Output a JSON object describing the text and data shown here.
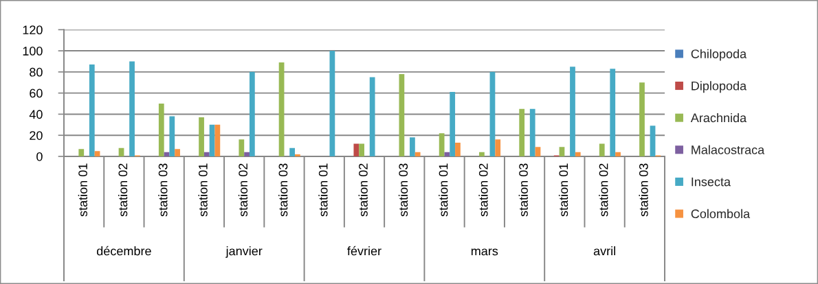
{
  "chart_data": {
    "type": "bar",
    "categories": [
      "station 01",
      "station 02",
      "station 03",
      "station 01",
      "station 02",
      "station 03",
      "station 01",
      "station 02",
      "station 03",
      "station 01",
      "station 02",
      "station 03",
      "station 01",
      "station 02",
      "station 03"
    ],
    "annotations": [
      "décembre",
      "janvier",
      "février",
      "mars",
      "avril"
    ],
    "series": [
      {
        "name": "Chilopoda",
        "color": "#4a7ebb",
        "values": [
          0,
          0,
          0,
          0,
          0,
          0,
          0,
          0,
          0,
          0,
          0,
          0,
          0,
          0,
          0
        ]
      },
      {
        "name": "Diplopoda",
        "color": "#be4b48",
        "values": [
          0,
          0,
          0,
          0,
          0,
          0,
          0,
          12,
          0,
          0,
          0,
          0,
          1,
          0,
          0
        ]
      },
      {
        "name": "Arachnida",
        "color": "#98b954",
        "values": [
          7,
          8,
          50,
          37,
          16,
          89,
          0,
          12,
          78,
          22,
          4,
          45,
          9,
          12,
          70
        ]
      },
      {
        "name": "Malacostraca",
        "color": "#7d60a0",
        "values": [
          0,
          0,
          4,
          4,
          4,
          0,
          0,
          0,
          0,
          4,
          0,
          0,
          0,
          0,
          0
        ]
      },
      {
        "name": "Insecta",
        "color": "#46aac5",
        "values": [
          87,
          90,
          38,
          30,
          80,
          8,
          100,
          75,
          18,
          61,
          80,
          45,
          85,
          83,
          29
        ]
      },
      {
        "name": "Colombola",
        "color": "#f69240",
        "values": [
          5,
          1,
          7,
          30,
          0,
          2,
          0,
          0,
          4,
          13,
          16,
          9,
          4,
          4,
          1
        ]
      }
    ],
    "ylim": [
      0,
      120
    ],
    "yticks": [
      0,
      20,
      40,
      60,
      80,
      100,
      120
    ],
    "grid": "y",
    "legend": "right"
  }
}
